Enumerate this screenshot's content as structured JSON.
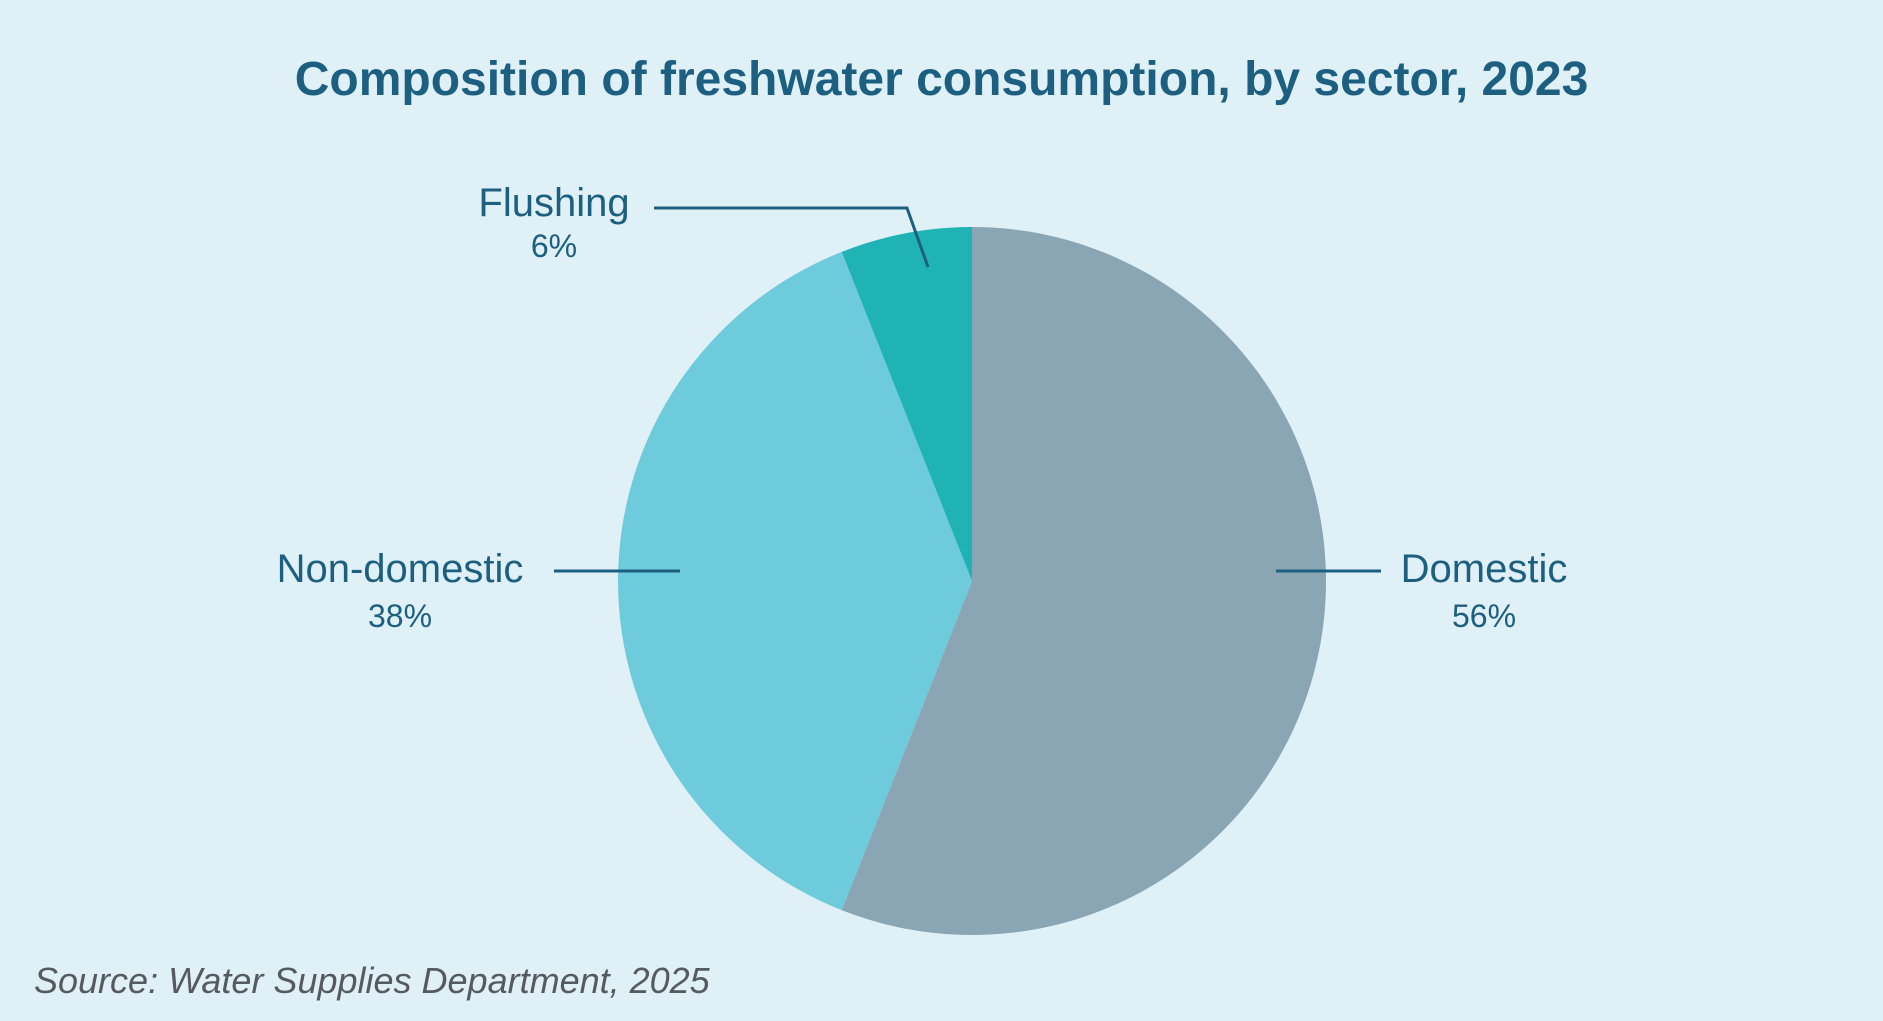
{
  "chart_data": {
    "type": "pie",
    "title": "Composition of freshwater consumption, by sector, 2023",
    "slices": [
      {
        "label": "Domestic",
        "value": 56,
        "value_label": "56%",
        "color": "#8aa6b5"
      },
      {
        "label": "Non-domestic",
        "value": 38,
        "value_label": "38%",
        "color": "#6ecbdc"
      },
      {
        "label": "Flushing",
        "value": 6,
        "value_label": "6%",
        "color": "#1fb3b5"
      }
    ],
    "start": "12 o'clock, clockwise",
    "source": "Source: Water Supplies Department, 2025"
  },
  "colors": {
    "background": "#dff0f7",
    "label": "#1c5f80",
    "leader_line": "#1c5f80",
    "source_text": "#555a5e"
  }
}
